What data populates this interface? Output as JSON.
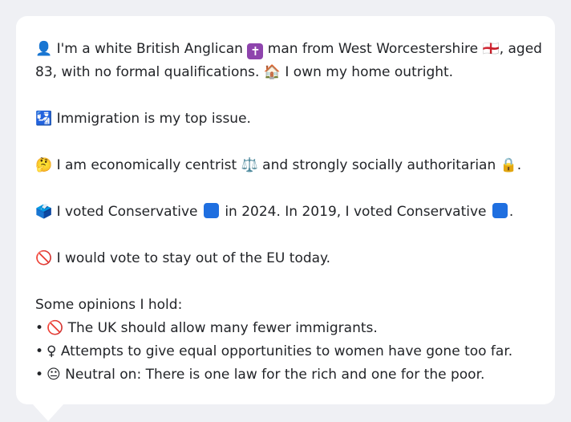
{
  "profile": {
    "line1_a": "👤 I'm a white British Anglican ",
    "line1_icon": "✝",
    "line1_b": " man from West Worcestershire 🏴󠁧󠁢󠁥󠁮󠁧󠁿, aged",
    "line2": "83, with no formal qualifications. 🏠 I own my home outright.",
    "issue": "🛂 Immigration is my top issue.",
    "ideology": "🤔 I am economically centrist ⚖️ and strongly socially authoritarian 🔒.",
    "vote_a": "🗳️ I voted Conservative ",
    "vote_b": " in 2024. In 2019, I voted Conservative ",
    "vote_c": ".",
    "eu": "🚫 I would vote to stay out of the EU today.",
    "opinions_heading": "Some opinions I hold:",
    "opinions": [
      "🚫 The UK should allow many fewer immigrants.",
      "♀ Attempts to give equal opportunities to women have gone too far.",
      "😐 Neutral on: There is one law for the rich and one for the poor."
    ],
    "bullet": "•",
    "colors": {
      "conservative": "#1f6fe0",
      "anglican": "#8e44ad"
    }
  }
}
